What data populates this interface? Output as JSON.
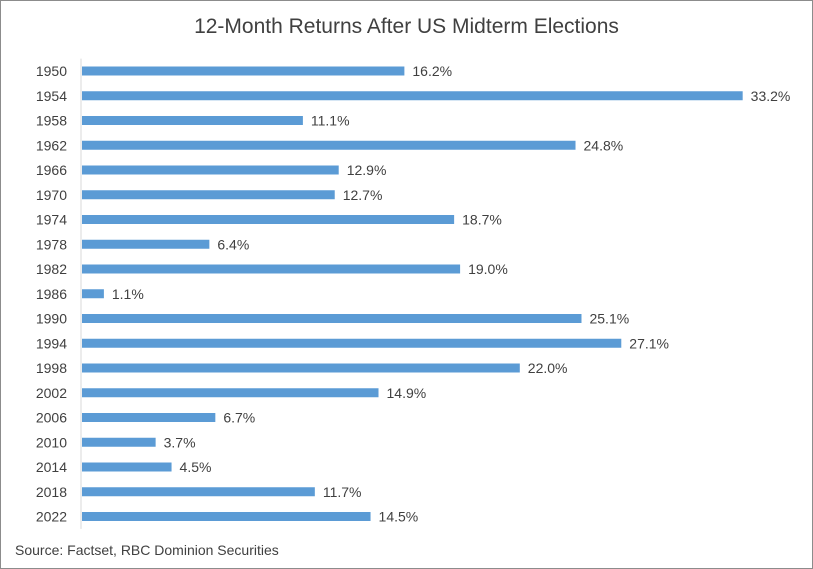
{
  "chart_data": {
    "type": "bar",
    "orientation": "horizontal",
    "title": "12-Month Returns After US Midterm Elections",
    "categories": [
      "1950",
      "1954",
      "1958",
      "1962",
      "1966",
      "1970",
      "1974",
      "1978",
      "1982",
      "1986",
      "1990",
      "1994",
      "1998",
      "2002",
      "2006",
      "2010",
      "2014",
      "2018",
      "2022"
    ],
    "values": [
      16.2,
      33.2,
      11.1,
      24.8,
      12.9,
      12.7,
      18.7,
      6.4,
      19.0,
      1.1,
      25.1,
      27.1,
      22.0,
      14.9,
      6.7,
      3.7,
      4.5,
      11.7,
      14.5
    ],
    "data_labels": [
      "16.2%",
      "33.2%",
      "11.1%",
      "24.8%",
      "12.9%",
      "12.7%",
      "18.7%",
      "6.4%",
      "19.0%",
      "1.1%",
      "25.1%",
      "27.1%",
      "22.0%",
      "14.9%",
      "6.7%",
      "3.7%",
      "4.5%",
      "11.7%",
      "14.5%"
    ],
    "xlabel": "",
    "ylabel": "",
    "grid": false,
    "legend": "none",
    "bar_color": "#5b9bd5"
  },
  "source": "Source: Factset, RBC Dominion Securities"
}
